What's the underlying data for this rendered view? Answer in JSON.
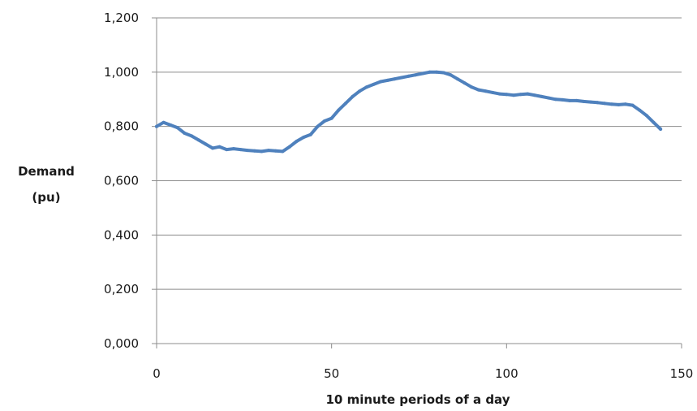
{
  "chart_data": {
    "type": "line",
    "title": "",
    "xlabel": "10 minute periods of a day",
    "ylabel_lines": [
      "Demand",
      "(pu)"
    ],
    "xlim": [
      0,
      150
    ],
    "ylim": [
      0,
      1.2
    ],
    "x_ticks": [
      0,
      50,
      100,
      150
    ],
    "x_tick_labels": [
      "0",
      "50",
      "100",
      "150"
    ],
    "y_ticks": [
      0,
      0.2,
      0.4,
      0.6,
      0.8,
      1.0,
      1.2
    ],
    "y_tick_labels": [
      "0,000",
      "0,200",
      "0,400",
      "0,600",
      "0,800",
      "1,000",
      "1,200"
    ],
    "grid": "horizontal",
    "legend": "none",
    "series": [
      {
        "color": "#4f81bd",
        "x": [
          0,
          2,
          4,
          6,
          8,
          10,
          12,
          14,
          16,
          18,
          20,
          22,
          24,
          26,
          28,
          30,
          32,
          34,
          36,
          38,
          40,
          42,
          44,
          46,
          48,
          50,
          52,
          54,
          56,
          58,
          60,
          62,
          64,
          66,
          68,
          70,
          72,
          74,
          76,
          78,
          80,
          82,
          84,
          86,
          88,
          90,
          92,
          94,
          96,
          98,
          100,
          102,
          104,
          106,
          108,
          110,
          112,
          114,
          116,
          118,
          120,
          122,
          124,
          126,
          128,
          130,
          132,
          134,
          136,
          138,
          140,
          142,
          144
        ],
        "values": [
          0.8,
          0.815,
          0.805,
          0.795,
          0.775,
          0.765,
          0.75,
          0.735,
          0.72,
          0.725,
          0.715,
          0.718,
          0.715,
          0.712,
          0.71,
          0.708,
          0.712,
          0.71,
          0.708,
          0.725,
          0.745,
          0.76,
          0.77,
          0.8,
          0.82,
          0.83,
          0.86,
          0.885,
          0.91,
          0.93,
          0.945,
          0.955,
          0.965,
          0.97,
          0.975,
          0.98,
          0.985,
          0.99,
          0.995,
          1.0,
          1.0,
          0.998,
          0.99,
          0.975,
          0.96,
          0.945,
          0.935,
          0.93,
          0.925,
          0.92,
          0.918,
          0.915,
          0.918,
          0.92,
          0.915,
          0.91,
          0.905,
          0.9,
          0.898,
          0.895,
          0.895,
          0.892,
          0.89,
          0.888,
          0.885,
          0.882,
          0.88,
          0.882,
          0.878,
          0.86,
          0.84,
          0.815,
          0.79
        ]
      }
    ]
  }
}
